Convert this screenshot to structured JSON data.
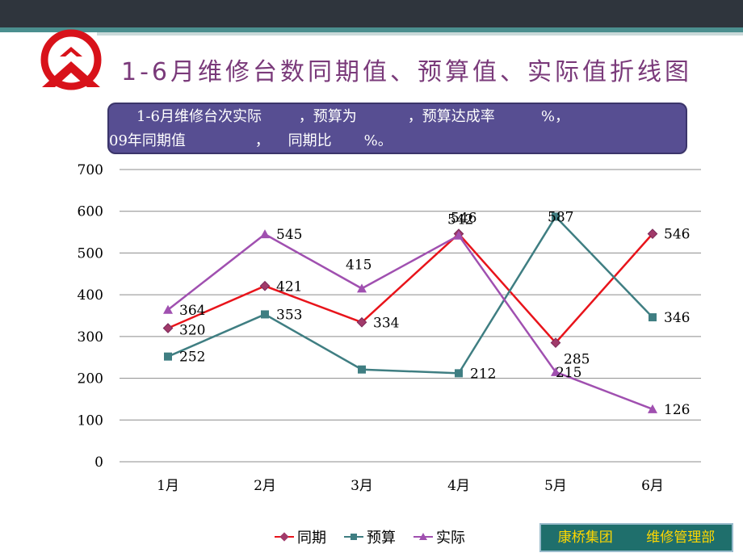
{
  "header": {
    "title": "1-6月维修台数同期值、预算值、实际值折线图"
  },
  "summary": {
    "line1": "1-6月维修台次实际        ，预算为           ，预算达成率          %，",
    "line2": "09年同期值               ，    同期比       %。"
  },
  "footer": {
    "company": "康桥集团",
    "department": "维修管理部"
  },
  "colors": {
    "同期": "#e8141b",
    "预算": "#3f7e82",
    "实际": "#a050b0"
  },
  "chart_data": {
    "type": "line",
    "categories": [
      "1月",
      "2月",
      "3月",
      "4月",
      "5月",
      "6月"
    ],
    "ylim": [
      0,
      700
    ],
    "yticks": [
      "0",
      "100",
      "200",
      "300",
      "400",
      "500",
      "600",
      "700"
    ],
    "grid": true,
    "legend_position": "bottom",
    "series": [
      {
        "name": "同期",
        "marker": "diamond",
        "values": [
          320,
          421,
          334,
          546,
          285,
          546
        ],
        "labels": [
          "320",
          "421",
          "334",
          "546",
          "285",
          "546"
        ]
      },
      {
        "name": "预算",
        "marker": "square",
        "values": [
          252,
          353,
          221,
          212,
          587,
          346
        ],
        "labels": [
          "252",
          "353",
          "",
          "212",
          "587",
          "346"
        ]
      },
      {
        "name": "实际",
        "marker": "triangle",
        "values": [
          364,
          545,
          415,
          542,
          215,
          126
        ],
        "labels": [
          "364",
          "545",
          "415",
          "542",
          "215",
          "126"
        ]
      }
    ]
  }
}
